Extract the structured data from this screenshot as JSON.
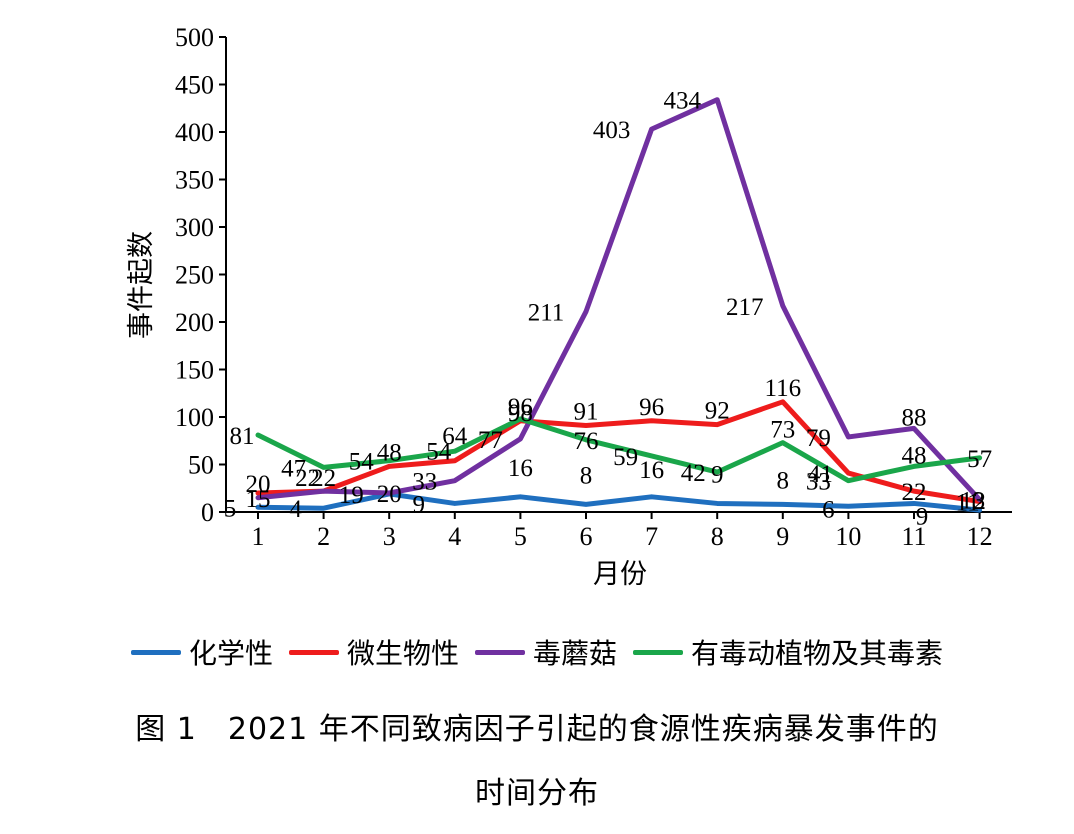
{
  "chart_data": {
    "type": "line",
    "title": "",
    "xlabel": "月份",
    "ylabel": "事件起数",
    "x": [
      1,
      2,
      3,
      4,
      5,
      6,
      7,
      8,
      9,
      10,
      11,
      12
    ],
    "ylim": [
      0,
      500
    ],
    "yticks": [
      0,
      50,
      100,
      150,
      200,
      250,
      300,
      350,
      400,
      450,
      500
    ],
    "grid": false,
    "legend_position": "bottom",
    "series": [
      {
        "name": "化学性",
        "color": "#1f6fbf",
        "values": [
          5,
          4,
          19,
          9,
          16,
          8,
          16,
          9,
          8,
          6,
          9,
          2
        ]
      },
      {
        "name": "微生物性",
        "color": "#ee1c1c",
        "values": [
          20,
          22,
          48,
          54,
          96,
          91,
          96,
          92,
          116,
          41,
          22,
          11
        ]
      },
      {
        "name": "毒蘑菇",
        "color": "#7030a0",
        "values": [
          15,
          22,
          20,
          33,
          77,
          211,
          403,
          434,
          217,
          79,
          88,
          13
        ]
      },
      {
        "name": "有毒动植物及其毒素",
        "color": "#1aa64a",
        "values": [
          81,
          47,
          54,
          64,
          98,
          76,
          59,
          42,
          73,
          33,
          48,
          57
        ]
      }
    ]
  },
  "caption": {
    "line1": "图 1　2021 年不同致病因子引起的食源性疾病暴发事件的",
    "line2": "时间分布"
  }
}
